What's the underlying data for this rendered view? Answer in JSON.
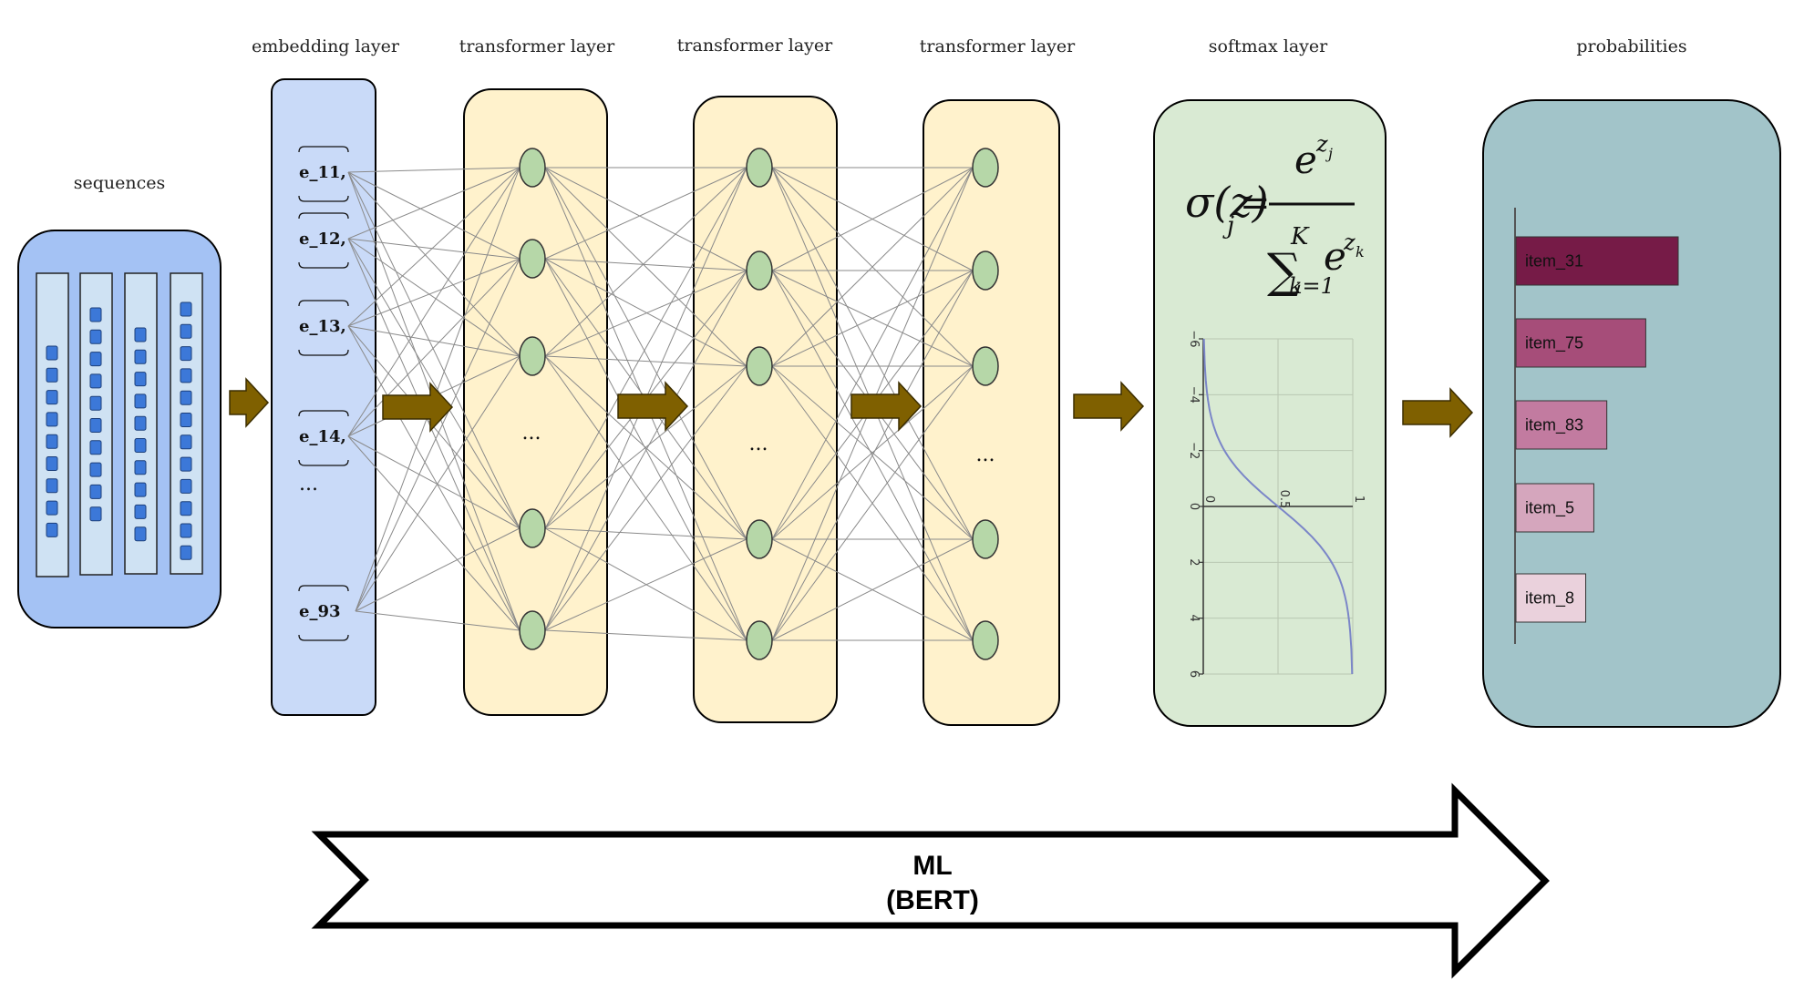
{
  "labels": {
    "sequences": "sequences",
    "embedding": "embedding layer",
    "transformer1": "transformer layer",
    "transformer2": "transformer layer",
    "transformer3": "transformer layer",
    "softmax": "softmax layer",
    "probabilities": "probabilities"
  },
  "embeddings": [
    "e_11,",
    "e_12,",
    "e_13,",
    "e_14,",
    "...",
    "e_93"
  ],
  "layer_ellipsis": "...",
  "softmax_formula": {
    "lhs": "σ(z)",
    "sub_j": "j",
    "equals": "=",
    "numerator": "e",
    "num_sup": "z",
    "num_sup_sub": "j",
    "sum": "∑",
    "sum_top": "K",
    "sum_bottom": "k=1",
    "den_e": "e",
    "den_sup": "z",
    "den_sup_sub": "k"
  },
  "softmax_plot": {
    "x_ticks": [
      "−6",
      "−4",
      "−2",
      "0",
      "2",
      "4",
      "6"
    ],
    "y_ticks": [
      "0",
      "0.5",
      "1"
    ],
    "curve_color": "#7b86c8"
  },
  "chart_data": {
    "type": "bar",
    "title": "probabilities",
    "categories": [
      "item_31",
      "item_75",
      "item_83",
      "item_5",
      "item_8"
    ],
    "values": [
      1.0,
      0.8,
      0.56,
      0.48,
      0.43
    ],
    "colors": [
      "#761b47",
      "#a64d79",
      "#c27ba0",
      "#d5a6bd",
      "#ead1dc"
    ]
  },
  "ml_arrow": {
    "line1": "ML",
    "line2": "(BERT)"
  },
  "colors": {
    "sequences_box": "#a4c2f4",
    "embedding_box": "#c9daf8",
    "transformer_box": "#fff2cc",
    "softmax_box": "#d9ead3",
    "probabilities_box": "#a2c4c9",
    "node_fill": "#b6d7a8",
    "flow_arrow": "#7f6000",
    "token_fill": "#3c78d8",
    "seq_strip": "#cfe2f3"
  }
}
